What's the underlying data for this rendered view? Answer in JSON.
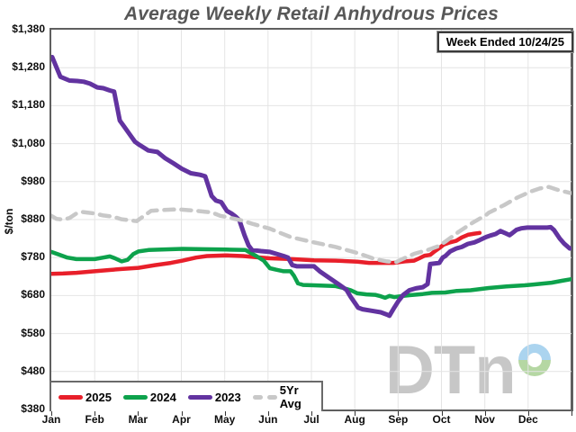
{
  "title": {
    "text": "Average Weekly Retail Anhydrous Prices",
    "color": "#575757"
  },
  "badge": {
    "text": "Week Ended 10/24/25"
  },
  "logo": {
    "text": "DTn",
    "donut_colors": [
      "#abd4ef",
      "#b5d7a3"
    ]
  },
  "chart_data": {
    "type": "line",
    "title": "Average Weekly Retail Anhydrous Prices",
    "xlabel": "",
    "ylabel": "$/ton",
    "ylim": [
      380,
      1380
    ],
    "ytick_values": [
      1380,
      1280,
      1180,
      1080,
      980,
      880,
      780,
      680,
      580,
      480,
      380
    ],
    "ytick_labels": [
      "$1,380",
      "$1,280",
      "$1,180",
      "$1,080",
      "$980",
      "$880",
      "$780",
      "$680",
      "$580",
      "$480",
      "$380"
    ],
    "xtick_labels": [
      "Jan",
      "Feb",
      "Mar",
      "Apr",
      "May",
      "Jun",
      "Jul",
      "Aug",
      "Sep",
      "Oct",
      "Nov",
      "Dec"
    ],
    "grid": true,
    "legend_position": "bottom-left",
    "x_unit": "month (0 = Jan 1, 12 = Dec 31)",
    "series": [
      {
        "name": "2025",
        "color": "#e81f2a",
        "dash": false,
        "width": 4.5,
        "points": [
          [
            0,
            737
          ],
          [
            0.27,
            738
          ],
          [
            0.58,
            740
          ],
          [
            1,
            744
          ],
          [
            1.31,
            747
          ],
          [
            1.62,
            750
          ],
          [
            2.01,
            753
          ],
          [
            2.39,
            760
          ],
          [
            2.76,
            766
          ],
          [
            3.03,
            772
          ],
          [
            3.34,
            780
          ],
          [
            3.59,
            784
          ],
          [
            4.03,
            786
          ],
          [
            4.42,
            784
          ],
          [
            4.84,
            780
          ],
          [
            5.04,
            778
          ],
          [
            5.56,
            776
          ],
          [
            6.06,
            773
          ],
          [
            6.56,
            772
          ],
          [
            7.06,
            769
          ],
          [
            7.33,
            766
          ],
          [
            7.89,
            766
          ],
          [
            8.16,
            770
          ],
          [
            8.37,
            772
          ],
          [
            8.49,
            778
          ],
          [
            8.61,
            785
          ],
          [
            8.74,
            787
          ],
          [
            8.84,
            796
          ],
          [
            8.95,
            805
          ],
          [
            9.05,
            814
          ],
          [
            9.2,
            820
          ],
          [
            9.34,
            824
          ],
          [
            9.47,
            833
          ],
          [
            9.61,
            840
          ],
          [
            9.76,
            843
          ],
          [
            9.88,
            845
          ]
        ]
      },
      {
        "name": "2024",
        "color": "#0da24c",
        "dash": false,
        "width": 4.5,
        "points": [
          [
            0,
            795
          ],
          [
            0.17,
            788
          ],
          [
            0.37,
            780
          ],
          [
            0.58,
            776
          ],
          [
            1,
            776
          ],
          [
            1.2,
            780
          ],
          [
            1.35,
            783
          ],
          [
            1.47,
            778
          ],
          [
            1.62,
            770
          ],
          [
            1.76,
            774
          ],
          [
            1.89,
            789
          ],
          [
            2.01,
            796
          ],
          [
            2.24,
            800
          ],
          [
            2.55,
            801
          ],
          [
            3.03,
            803
          ],
          [
            3.49,
            802
          ],
          [
            4.03,
            801
          ],
          [
            4.48,
            800
          ],
          [
            4.73,
            784
          ],
          [
            4.9,
            772
          ],
          [
            5.04,
            752
          ],
          [
            5.19,
            748
          ],
          [
            5.36,
            744
          ],
          [
            5.52,
            744
          ],
          [
            5.6,
            732
          ],
          [
            5.69,
            712
          ],
          [
            5.81,
            708
          ],
          [
            6.06,
            707
          ],
          [
            6.56,
            705
          ],
          [
            6.7,
            701
          ],
          [
            6.91,
            694
          ],
          [
            7.06,
            686
          ],
          [
            7.27,
            683
          ],
          [
            7.47,
            682
          ],
          [
            7.6,
            678
          ],
          [
            7.7,
            674
          ],
          [
            7.8,
            679
          ],
          [
            7.91,
            676
          ],
          [
            8.05,
            678
          ],
          [
            8.26,
            681
          ],
          [
            8.57,
            684
          ],
          [
            8.78,
            687
          ],
          [
            9.09,
            688
          ],
          [
            9.34,
            692
          ],
          [
            9.67,
            694
          ],
          [
            10.09,
            700
          ],
          [
            10.5,
            704
          ],
          [
            10.92,
            707
          ],
          [
            11.1,
            709
          ],
          [
            11.54,
            714
          ],
          [
            11.79,
            719
          ],
          [
            11.98,
            723
          ]
        ]
      },
      {
        "name": "2023",
        "color": "#6233a0",
        "dash": false,
        "width": 5,
        "points": [
          [
            0.02,
            1308
          ],
          [
            0.21,
            1256
          ],
          [
            0.42,
            1246
          ],
          [
            0.6,
            1245
          ],
          [
            0.75,
            1243
          ],
          [
            0.89,
            1238
          ],
          [
            1.06,
            1228
          ],
          [
            1.2,
            1226
          ],
          [
            1.35,
            1220
          ],
          [
            1.45,
            1217
          ],
          [
            1.58,
            1141
          ],
          [
            1.68,
            1125
          ],
          [
            1.83,
            1101
          ],
          [
            1.93,
            1085
          ],
          [
            2.03,
            1077
          ],
          [
            2.24,
            1062
          ],
          [
            2.45,
            1058
          ],
          [
            2.62,
            1042
          ],
          [
            2.82,
            1028
          ],
          [
            3.01,
            1014
          ],
          [
            3.22,
            1002
          ],
          [
            3.43,
            998
          ],
          [
            3.55,
            994
          ],
          [
            3.7,
            942
          ],
          [
            3.8,
            930
          ],
          [
            3.92,
            926
          ],
          [
            4.05,
            903
          ],
          [
            4.17,
            895
          ],
          [
            4.26,
            887
          ],
          [
            4.34,
            878
          ],
          [
            4.46,
            838
          ],
          [
            4.55,
            812
          ],
          [
            4.63,
            800
          ],
          [
            4.84,
            797
          ],
          [
            5.04,
            795
          ],
          [
            5.36,
            784
          ],
          [
            5.46,
            780
          ],
          [
            5.56,
            760
          ],
          [
            5.67,
            757
          ],
          [
            6.06,
            757
          ],
          [
            6.19,
            744
          ],
          [
            6.39,
            728
          ],
          [
            6.6,
            712
          ],
          [
            6.81,
            695
          ],
          [
            6.91,
            676
          ],
          [
            7.08,
            648
          ],
          [
            7.18,
            644
          ],
          [
            7.39,
            640
          ],
          [
            7.6,
            636
          ],
          [
            7.74,
            630
          ],
          [
            7.8,
            627
          ],
          [
            7.91,
            648
          ],
          [
            8.01,
            666
          ],
          [
            8.12,
            682
          ],
          [
            8.26,
            694
          ],
          [
            8.41,
            699
          ],
          [
            8.57,
            702
          ],
          [
            8.68,
            710
          ],
          [
            8.74,
            763
          ],
          [
            8.95,
            766
          ],
          [
            9.03,
            780
          ],
          [
            9.09,
            784
          ],
          [
            9.2,
            796
          ],
          [
            9.34,
            804
          ],
          [
            9.47,
            808
          ],
          [
            9.61,
            816
          ],
          [
            9.76,
            820
          ],
          [
            9.88,
            826
          ],
          [
            10.03,
            834
          ],
          [
            10.13,
            838
          ],
          [
            10.25,
            842
          ],
          [
            10.36,
            850
          ],
          [
            10.46,
            845
          ],
          [
            10.57,
            839
          ],
          [
            10.63,
            844
          ],
          [
            10.73,
            853
          ],
          [
            10.84,
            857
          ],
          [
            10.98,
            859
          ],
          [
            11.44,
            859
          ],
          [
            11.52,
            860
          ],
          [
            11.6,
            852
          ],
          [
            11.73,
            830
          ],
          [
            11.83,
            817
          ],
          [
            11.96,
            804
          ]
        ]
      },
      {
        "name": "5Yr Avg",
        "color": "#c8c8c8",
        "dash": true,
        "width": 4.5,
        "points": [
          [
            0,
            890
          ],
          [
            0.12,
            882
          ],
          [
            0.27,
            880
          ],
          [
            0.42,
            884
          ],
          [
            0.58,
            896
          ],
          [
            0.73,
            900
          ],
          [
            1,
            896
          ],
          [
            1.2,
            891
          ],
          [
            1.41,
            888
          ],
          [
            1.62,
            881
          ],
          [
            1.97,
            876
          ],
          [
            2.14,
            890
          ],
          [
            2.3,
            903
          ],
          [
            2.55,
            905
          ],
          [
            2.93,
            907
          ],
          [
            3.28,
            904
          ],
          [
            3.7,
            899
          ],
          [
            3.9,
            890
          ],
          [
            4.03,
            887
          ],
          [
            4.38,
            878
          ],
          [
            4.67,
            868
          ],
          [
            5.04,
            856
          ],
          [
            5.52,
            834
          ],
          [
            6.06,
            820
          ],
          [
            6.56,
            808
          ],
          [
            7.06,
            792
          ],
          [
            7.47,
            776
          ],
          [
            7.74,
            770
          ],
          [
            7.95,
            768
          ],
          [
            8.1,
            776
          ],
          [
            8.37,
            790
          ],
          [
            8.68,
            800
          ],
          [
            8.93,
            810
          ],
          [
            9.09,
            822
          ],
          [
            9.4,
            848
          ],
          [
            9.72,
            872
          ],
          [
            10.03,
            892
          ],
          [
            10.09,
            898
          ],
          [
            10.44,
            918
          ],
          [
            10.75,
            938
          ],
          [
            11.06,
            954
          ],
          [
            11.27,
            962
          ],
          [
            11.48,
            966
          ],
          [
            11.69,
            958
          ],
          [
            11.9,
            952
          ],
          [
            11.98,
            950
          ]
        ]
      }
    ]
  }
}
